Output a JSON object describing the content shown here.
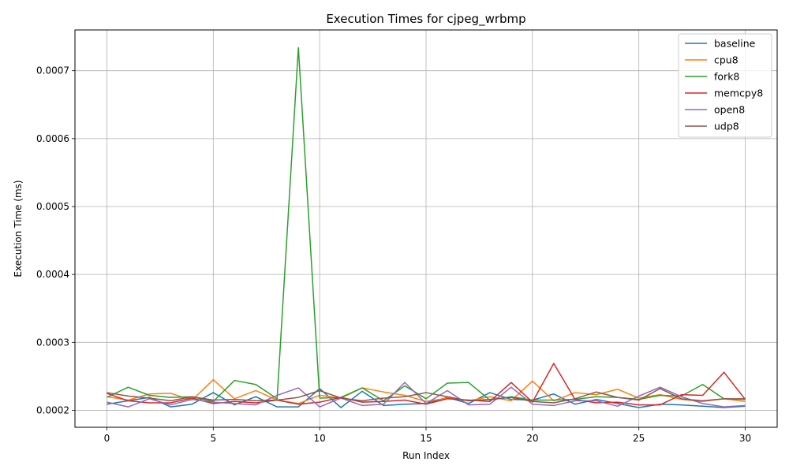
{
  "chart_data": {
    "type": "line",
    "title": "Execution Times for cjpeg_wrbmp",
    "xlabel": "Run Index",
    "ylabel": "Execution Time (ms)",
    "xlim": [
      -1.5,
      31.5
    ],
    "ylim": [
      0.000175,
      0.00076
    ],
    "xticks": [
      0,
      5,
      10,
      15,
      20,
      25,
      30
    ],
    "yticks": [
      0.0002,
      0.0003,
      0.0004,
      0.0005,
      0.0006,
      0.0007
    ],
    "ytick_labels": [
      "0.0002",
      "0.0003",
      "0.0004",
      "0.0005",
      "0.0006",
      "0.0007"
    ],
    "grid": true,
    "legend": "top-right",
    "x": [
      0,
      1,
      2,
      3,
      4,
      5,
      6,
      7,
      8,
      9,
      10,
      11,
      12,
      13,
      14,
      15,
      16,
      17,
      18,
      19,
      20,
      21,
      22,
      23,
      24,
      25,
      26,
      27,
      28,
      29,
      30
    ],
    "series": [
      {
        "name": "baseline",
        "color": "#1f77b4",
        "values": [
          0.000209,
          0.000214,
          0.000219,
          0.000205,
          0.000209,
          0.000226,
          0.000208,
          0.00022,
          0.000205,
          0.000205,
          0.000232,
          0.000204,
          0.000228,
          0.000207,
          0.000209,
          0.00021,
          0.000219,
          0.00021,
          0.000226,
          0.000216,
          0.000215,
          0.000224,
          0.000209,
          0.000216,
          0.00021,
          0.000204,
          0.000209,
          0.000208,
          0.000206,
          0.000204,
          0.000206
        ]
      },
      {
        "name": "cpu8",
        "color": "#ff7f0e",
        "values": [
          0.00022,
          0.000215,
          0.000224,
          0.000225,
          0.000215,
          0.000245,
          0.000217,
          0.000229,
          0.000215,
          0.00021,
          0.000222,
          0.000218,
          0.000233,
          0.000227,
          0.000222,
          0.000213,
          0.000218,
          0.000214,
          0.00022,
          0.000214,
          0.000243,
          0.000214,
          0.000226,
          0.000223,
          0.000231,
          0.000218,
          0.000223,
          0.000216,
          0.000213,
          0.000217,
          0.000213
        ]
      },
      {
        "name": "fork8",
        "color": "#2ca02c",
        "values": [
          0.000219,
          0.000234,
          0.000222,
          0.000219,
          0.00022,
          0.000213,
          0.000244,
          0.000238,
          0.000217,
          0.000734,
          0.000218,
          0.000219,
          0.000233,
          0.000214,
          0.000236,
          0.000217,
          0.00024,
          0.000241,
          0.000215,
          0.00022,
          0.000215,
          0.000215,
          0.000216,
          0.00022,
          0.000219,
          0.000216,
          0.000222,
          0.000221,
          0.000238,
          0.000217,
          0.000216
        ]
      },
      {
        "name": "memcpy8",
        "color": "#d62728",
        "values": [
          0.000225,
          0.000214,
          0.000211,
          0.000211,
          0.000218,
          0.00021,
          0.000213,
          0.000211,
          0.000215,
          0.000209,
          0.000212,
          0.000219,
          0.000212,
          0.000213,
          0.000215,
          0.000209,
          0.000217,
          0.000215,
          0.000213,
          0.000241,
          0.000212,
          0.000269,
          0.000216,
          0.000211,
          0.000212,
          0.000208,
          0.000208,
          0.000223,
          0.000222,
          0.000256,
          0.000216
        ]
      },
      {
        "name": "open8",
        "color": "#9467bd",
        "values": [
          0.000212,
          0.000205,
          0.000217,
          0.000208,
          0.000216,
          0.000212,
          0.00021,
          0.000208,
          0.000222,
          0.000233,
          0.000205,
          0.000218,
          0.000207,
          0.000209,
          0.000241,
          0.00021,
          0.000229,
          0.000208,
          0.000209,
          0.000234,
          0.000209,
          0.000207,
          0.000214,
          0.000214,
          0.000206,
          0.000221,
          0.000234,
          0.00022,
          0.00021,
          0.000205,
          0.000207
        ]
      },
      {
        "name": "udp8",
        "color": "#8c564b",
        "values": [
          0.000226,
          0.000221,
          0.000218,
          0.000214,
          0.00022,
          0.000215,
          0.000216,
          0.000214,
          0.000215,
          0.000219,
          0.000229,
          0.000218,
          0.000214,
          0.000218,
          0.00022,
          0.000226,
          0.00022,
          0.000214,
          0.000216,
          0.000219,
          0.000213,
          0.000211,
          0.000217,
          0.000227,
          0.000219,
          0.000215,
          0.000232,
          0.000217,
          0.000214,
          0.000217,
          0.000217
        ]
      }
    ]
  }
}
